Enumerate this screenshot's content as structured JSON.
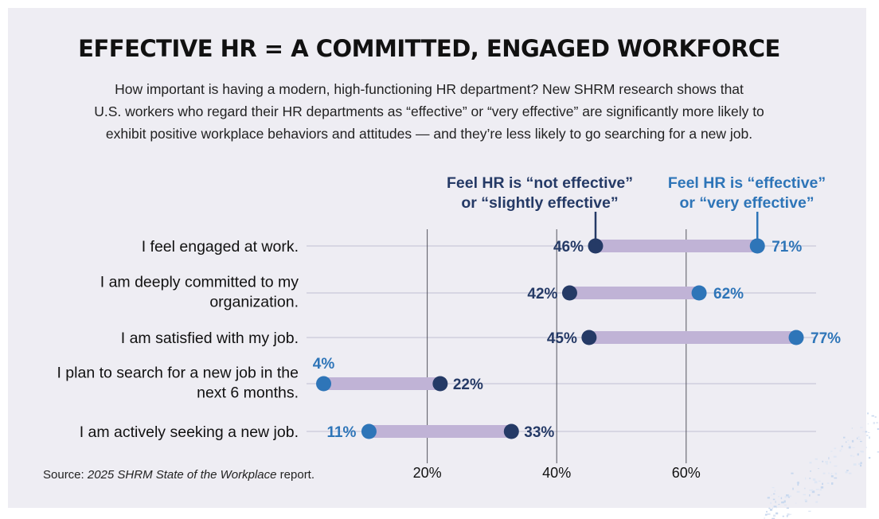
{
  "title": "EFFECTIVE HR = A COMMITTED, ENGAGED WORKFORCE",
  "subtitle": [
    "How important is having a modern, high-functioning HR department? New SHRM research shows that",
    "U.S. workers who regard their HR departments as “effective” or “very effective” are significantly more likely to",
    "exhibit positive workplace behaviors and attitudes — and they’re less likely to go searching for a new job."
  ],
  "source": {
    "prefix": "Source: ",
    "title": "2025 SHRM State of the Workplace",
    "suffix": " report."
  },
  "colors": {
    "not_effective": "#253a66",
    "effective": "#2e75b8",
    "connector": "#c0b3d6",
    "gridline": "#55555f",
    "rowline": "#c9c8d9",
    "background": "#eeedf3"
  },
  "chart_data": {
    "type": "dumbbell",
    "title": "EFFECTIVE HR = A COMMITTED, ENGAGED WORKFORCE",
    "categories": [
      "I feel engaged at work.",
      "I am deeply committed to my organization.",
      "I am satisfied with my job.",
      "I plan to search for a new job in the next 6 months.",
      "I am actively seeking a new job."
    ],
    "category_lines": [
      [
        "I feel engaged at work."
      ],
      [
        "I am deeply committed to my",
        "organization."
      ],
      [
        "I am satisfied with my job."
      ],
      [
        "I plan to search for a new job in the",
        "next 6 months."
      ],
      [
        "I am actively seeking a new job."
      ]
    ],
    "series": [
      {
        "name_lines": [
          "Feel HR is “not effective”",
          "or “slightly effective”"
        ],
        "name": "Feel HR is “not effective” or “slightly effective”",
        "values": [
          46,
          42,
          45,
          22,
          33
        ],
        "labels": [
          "46%",
          "42%",
          "45%",
          "22%",
          "33%"
        ]
      },
      {
        "name_lines": [
          "Feel HR is “effective”",
          "or “very effective”"
        ],
        "name": "Feel HR is “effective” or “very effective”",
        "values": [
          71,
          62,
          77,
          4,
          11
        ],
        "labels": [
          "71%",
          "62%",
          "77%",
          "4%",
          "11%"
        ]
      }
    ],
    "x_ticks": [
      20,
      40,
      60
    ],
    "x_tick_labels": [
      "20%",
      "40%",
      "60%"
    ],
    "xlim": [
      0,
      80
    ],
    "grid": true
  }
}
